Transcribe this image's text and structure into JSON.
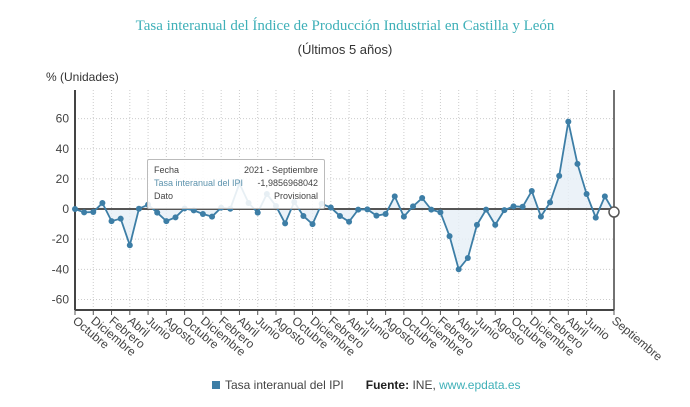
{
  "chart_data": {
    "type": "line",
    "title": "Tasa interanual del Índice de Producción Industrial en Castilla y León",
    "subtitle": "(Últimos 5 años)",
    "ylabel": "% (Unidades)",
    "xlabel": "",
    "ylim": [
      -67,
      79
    ],
    "yticks": [
      -60,
      -40,
      -20,
      0,
      20,
      40,
      60
    ],
    "grid": true,
    "legend_position": "bottom",
    "area_fill_to_zero": true,
    "x_tick_labels": [
      "Octubre",
      "Diciembre",
      "Febrero",
      "Abril",
      "Junio",
      "Agosto",
      "Octubre",
      "Diciembre",
      "Febrero",
      "Abril",
      "Junio",
      "Agosto",
      "Octubre",
      "Diciembre",
      "Febrero",
      "Abril",
      "Junio",
      "Agosto",
      "Octubre",
      "Diciembre",
      "Febrero",
      "Abril",
      "Junio",
      "Agosto",
      "Octubre",
      "Diciembre",
      "Febrero",
      "Abril",
      "Junio",
      "Septiembre"
    ],
    "series": [
      {
        "name": "Tasa interanual del IPI",
        "color": "#3d7ea6",
        "values": [
          0,
          -2.2,
          -2,
          4,
          -8,
          -6.4,
          -24,
          0.2,
          2.9,
          -2.4,
          -8,
          -5.5,
          0.4,
          -0.9,
          -3.3,
          -5,
          0.9,
          0.2,
          17,
          4,
          -2.4,
          10,
          2,
          -9.5,
          4.7,
          -4.6,
          -10,
          3.5,
          1,
          -4.6,
          -8.4,
          -0.4,
          -0.2,
          -4.4,
          -3.3,
          8.4,
          -5,
          1.8,
          7.3,
          -0.4,
          -2.2,
          -18,
          -40,
          -32.5,
          -10.5,
          -0.4,
          -10.5,
          -0.7,
          1.8,
          1.5,
          12,
          -5,
          4.4,
          22,
          58,
          30,
          10,
          -5.7,
          8.4,
          -1.99
        ]
      }
    ]
  },
  "tooltip": {
    "fecha_label": "Fecha",
    "fecha_value": "2021 - Septiembre",
    "series_label": "Tasa interanual del IPI",
    "series_value": "-1,9856968042",
    "dato_label": "Dato",
    "dato_value": "Provisional"
  },
  "legend": {
    "series_label": "Tasa interanual del IPI",
    "source_label": "Fuente:",
    "source_text": "INE,",
    "source_link": "www.epdata.es"
  }
}
